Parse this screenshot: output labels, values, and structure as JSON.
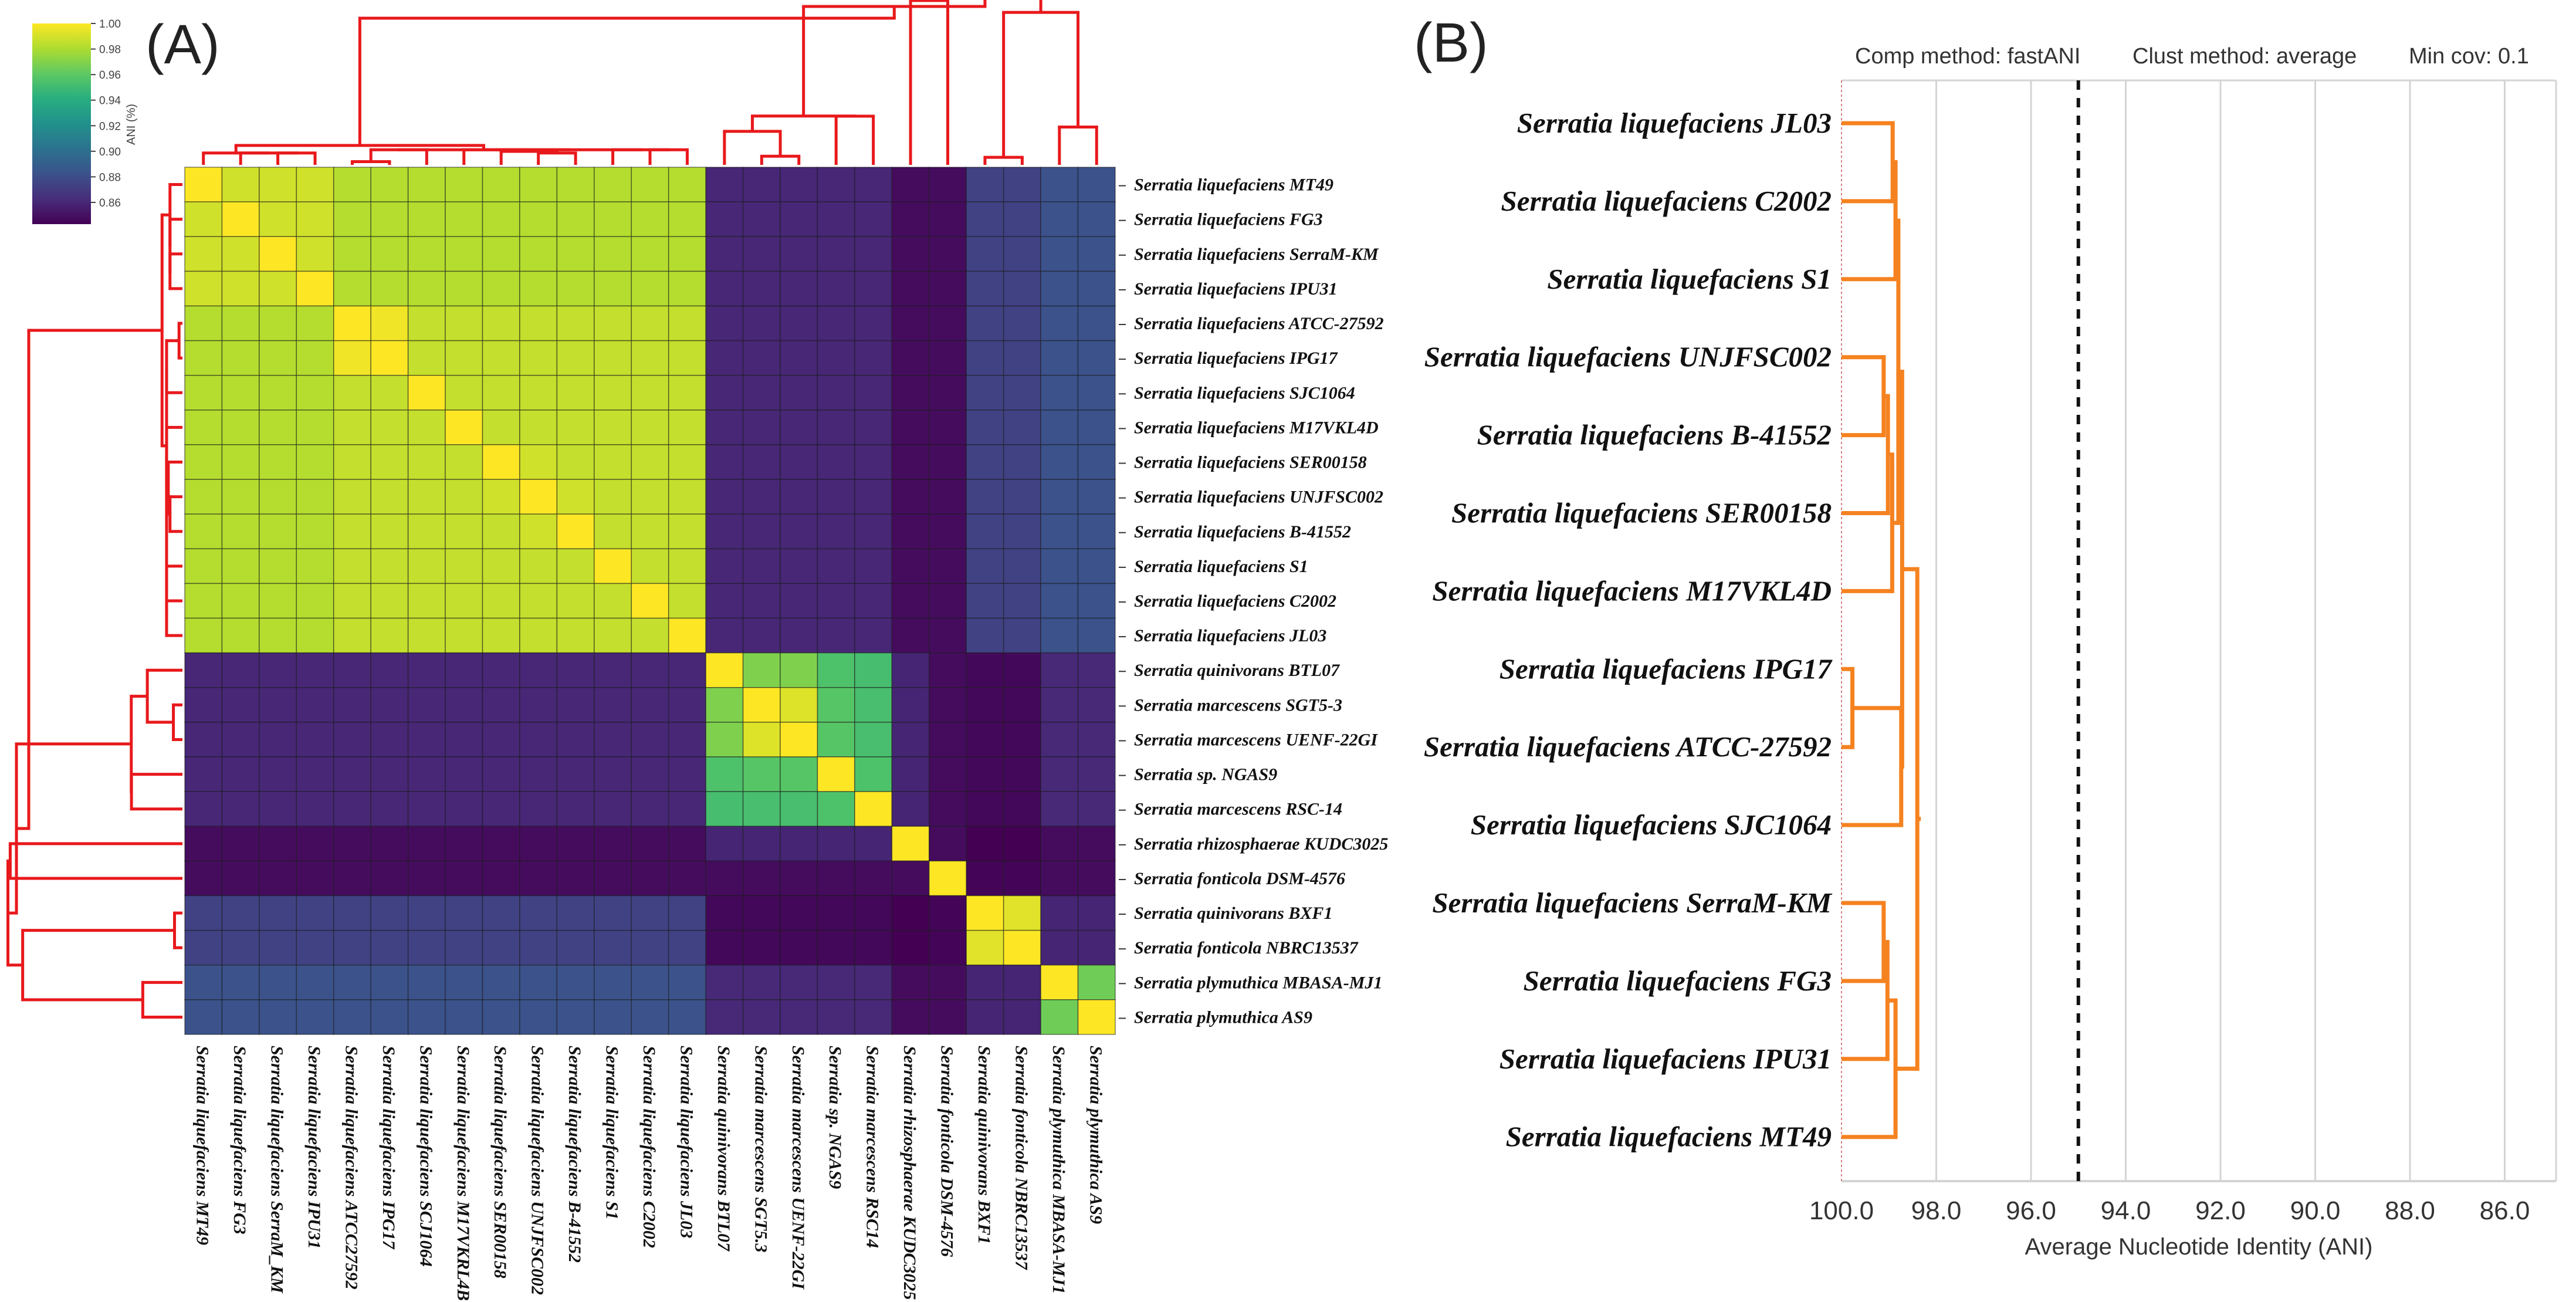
{
  "panels": {
    "a_tag": "(A)",
    "b_tag": "(B)"
  },
  "chart_data": [
    {
      "type": "heatmap",
      "colormap": "viridis",
      "dendrogram_color": "#e8191c",
      "highlight_color": "#cc1f1f",
      "highlighted_label": "Serratia liquefaciens UNJFSC002",
      "colorbar": {
        "label": "ANI (%)",
        "range": [
          0.843,
          1.0
        ],
        "ticks": [
          "1.00",
          "0.98",
          "0.96",
          "0.94",
          "0.92",
          "0.90",
          "0.88",
          "0.86"
        ]
      },
      "row_labels": [
        "Serratia liquefaciens MT49",
        "Serratia liquefaciens FG3",
        "Serratia liquefaciens SerraM-KM",
        "Serratia liquefaciens IPU31",
        "Serratia liquefaciens ATCC-27592",
        "Serratia liquefaciens IPG17",
        "Serratia liquefaciens SJC1064",
        "Serratia liquefaciens M17VKL4D",
        "Serratia liquefaciens SER00158",
        "Serratia liquefaciens UNJFSC002",
        "Serratia liquefaciens B-41552",
        "Serratia liquefaciens S1",
        "Serratia liquefaciens C2002",
        "Serratia liquefaciens JL03",
        "Serratia quinivorans BTL07",
        "Serratia marcescens SGT5-3",
        "Serratia marcescens UENF-22GI",
        "Serratia sp. NGAS9",
        "Serratia marcescens RSC-14",
        "Serratia rhizosphaerae KUDC3025",
        "Serratia fonticola DSM-4576",
        "Serratia quinivorans BXF1",
        "Serratia fonticola NBRC13537",
        "Serratia plymuthica MBASA-MJ1",
        "Serratia plymuthica AS9"
      ],
      "column_labels": [
        "Serratia liquefaciens MT49",
        "Serratia liquefaciens FG3",
        "Serratia liquefaciens SerraM_KM",
        "Serratia liquefaciens IPU31",
        "Serratia liquefaciens ATCC27592",
        "Serratia liquefaciens IPG17",
        "Serratia liquefaciens SCJ1064",
        "Serratia liquefaciens M17VKRL4B",
        "Serratia liquefaciens SER00158",
        "Serratia liquefaciens UNJFSC002",
        "Serratia liquefaciens B-41552",
        "Serratia liquefaciens S1",
        "Serratia liquefaciens C2002",
        "Serratia liquefaciens JL03",
        "Serratia quinivorans BTL07",
        "Serratia marcescens SGT5.3",
        "Serratia marcescens UENF-22GI",
        "Serratia sp. NGAS9",
        "Serratia marcescens RSC14",
        "Serratia rhizosphaerae KUDC3025",
        "Serratia fonticola DSM-4576",
        "Serratia quinivorans BXF1",
        "Serratia fonticola NBRC13537",
        "Serratia plymuthica MBASA-MJ1",
        "Serratia plymuthica AS9"
      ],
      "tree": [
        [
          [
            0,
            [
              1,
              [
                2,
                3
              ]
            ]
          ],
          [
            [
              [
                4,
                5
              ],
              6
            ],
            [
              [
                7,
                [
                  8,
                  [
                    9,
                    10
                  ]
                ]
              ],
              [
                11,
                [
                  12,
                  13
                ]
              ]
            ]
          ]
        ],
        [
          [
            [
              14,
              [
                15,
                16
              ]
            ],
            [
              17,
              18
            ]
          ],
          [
            [
              19,
              20
            ],
            [
              [
                21,
                22
              ],
              [
                23,
                24
              ]
            ]
          ]
        ]
      ],
      "matrix": [
        [
          1,
          0.989,
          0.989,
          0.989,
          0.982,
          0.982,
          0.982,
          0.982,
          0.982,
          0.982,
          0.982,
          0.982,
          0.982,
          0.982,
          0.86,
          0.86,
          0.86,
          0.86,
          0.86,
          0.848,
          0.848,
          0.874,
          0.874,
          0.882,
          0.882
        ],
        [
          0.989,
          1,
          0.989,
          0.989,
          0.982,
          0.982,
          0.982,
          0.982,
          0.982,
          0.982,
          0.982,
          0.982,
          0.982,
          0.982,
          0.86,
          0.86,
          0.86,
          0.86,
          0.86,
          0.848,
          0.848,
          0.874,
          0.874,
          0.882,
          0.882
        ],
        [
          0.989,
          0.989,
          1,
          0.989,
          0.982,
          0.982,
          0.982,
          0.982,
          0.982,
          0.982,
          0.982,
          0.982,
          0.982,
          0.982,
          0.86,
          0.86,
          0.86,
          0.86,
          0.86,
          0.848,
          0.848,
          0.874,
          0.874,
          0.882,
          0.882
        ],
        [
          0.989,
          0.989,
          0.989,
          1,
          0.982,
          0.982,
          0.982,
          0.982,
          0.982,
          0.982,
          0.982,
          0.982,
          0.982,
          0.982,
          0.86,
          0.86,
          0.86,
          0.86,
          0.86,
          0.848,
          0.848,
          0.874,
          0.874,
          0.882,
          0.882
        ],
        [
          0.982,
          0.982,
          0.982,
          0.982,
          1,
          0.997,
          0.986,
          0.986,
          0.986,
          0.986,
          0.986,
          0.986,
          0.986,
          0.986,
          0.86,
          0.86,
          0.86,
          0.86,
          0.86,
          0.848,
          0.848,
          0.874,
          0.874,
          0.882,
          0.882
        ],
        [
          0.982,
          0.982,
          0.982,
          0.982,
          0.997,
          1,
          0.986,
          0.986,
          0.986,
          0.986,
          0.986,
          0.986,
          0.986,
          0.986,
          0.86,
          0.86,
          0.86,
          0.86,
          0.86,
          0.848,
          0.848,
          0.874,
          0.874,
          0.882,
          0.882
        ],
        [
          0.982,
          0.982,
          0.982,
          0.982,
          0.986,
          0.986,
          1,
          0.986,
          0.986,
          0.986,
          0.986,
          0.986,
          0.986,
          0.986,
          0.86,
          0.86,
          0.86,
          0.86,
          0.86,
          0.848,
          0.848,
          0.874,
          0.874,
          0.882,
          0.882
        ],
        [
          0.982,
          0.982,
          0.982,
          0.982,
          0.986,
          0.986,
          0.986,
          1,
          0.986,
          0.986,
          0.986,
          0.986,
          0.986,
          0.986,
          0.86,
          0.86,
          0.86,
          0.86,
          0.86,
          0.848,
          0.848,
          0.874,
          0.874,
          0.882,
          0.882
        ],
        [
          0.982,
          0.982,
          0.982,
          0.982,
          0.986,
          0.986,
          0.986,
          0.986,
          1,
          0.989,
          0.986,
          0.986,
          0.986,
          0.986,
          0.86,
          0.86,
          0.86,
          0.86,
          0.86,
          0.848,
          0.848,
          0.874,
          0.874,
          0.882,
          0.882
        ],
        [
          0.982,
          0.982,
          0.982,
          0.982,
          0.986,
          0.986,
          0.986,
          0.986,
          0.989,
          1,
          0.989,
          0.986,
          0.986,
          0.986,
          0.86,
          0.86,
          0.86,
          0.86,
          0.86,
          0.848,
          0.848,
          0.874,
          0.874,
          0.882,
          0.882
        ],
        [
          0.982,
          0.982,
          0.982,
          0.982,
          0.986,
          0.986,
          0.986,
          0.986,
          0.986,
          0.989,
          1,
          0.986,
          0.986,
          0.986,
          0.86,
          0.86,
          0.86,
          0.86,
          0.86,
          0.848,
          0.848,
          0.874,
          0.874,
          0.882,
          0.882
        ],
        [
          0.982,
          0.982,
          0.982,
          0.982,
          0.986,
          0.986,
          0.986,
          0.986,
          0.986,
          0.986,
          0.986,
          1,
          0.986,
          0.986,
          0.86,
          0.86,
          0.86,
          0.86,
          0.86,
          0.848,
          0.848,
          0.874,
          0.874,
          0.882,
          0.882
        ],
        [
          0.982,
          0.982,
          0.982,
          0.982,
          0.986,
          0.986,
          0.986,
          0.986,
          0.986,
          0.986,
          0.986,
          0.986,
          1,
          0.986,
          0.86,
          0.86,
          0.86,
          0.86,
          0.86,
          0.848,
          0.848,
          0.874,
          0.874,
          0.882,
          0.882
        ],
        [
          0.982,
          0.982,
          0.982,
          0.982,
          0.986,
          0.986,
          0.986,
          0.986,
          0.986,
          0.986,
          0.986,
          0.986,
          0.986,
          1,
          0.86,
          0.86,
          0.86,
          0.86,
          0.86,
          0.848,
          0.848,
          0.874,
          0.874,
          0.882,
          0.882
        ],
        [
          0.86,
          0.86,
          0.86,
          0.86,
          0.86,
          0.86,
          0.86,
          0.86,
          0.86,
          0.86,
          0.86,
          0.86,
          0.86,
          0.86,
          1,
          0.969,
          0.969,
          0.955,
          0.952,
          0.859,
          0.848,
          0.846,
          0.846,
          0.861,
          0.861
        ],
        [
          0.86,
          0.86,
          0.86,
          0.86,
          0.86,
          0.86,
          0.86,
          0.86,
          0.86,
          0.86,
          0.86,
          0.86,
          0.86,
          0.86,
          0.969,
          1,
          0.992,
          0.958,
          0.953,
          0.859,
          0.848,
          0.846,
          0.846,
          0.861,
          0.861
        ],
        [
          0.86,
          0.86,
          0.86,
          0.86,
          0.86,
          0.86,
          0.86,
          0.86,
          0.86,
          0.86,
          0.86,
          0.86,
          0.86,
          0.86,
          0.969,
          0.992,
          1,
          0.958,
          0.953,
          0.859,
          0.848,
          0.846,
          0.846,
          0.861,
          0.861
        ],
        [
          0.86,
          0.86,
          0.86,
          0.86,
          0.86,
          0.86,
          0.86,
          0.86,
          0.86,
          0.86,
          0.86,
          0.86,
          0.86,
          0.86,
          0.955,
          0.958,
          0.958,
          1,
          0.955,
          0.859,
          0.848,
          0.846,
          0.846,
          0.861,
          0.861
        ],
        [
          0.86,
          0.86,
          0.86,
          0.86,
          0.86,
          0.86,
          0.86,
          0.86,
          0.86,
          0.86,
          0.86,
          0.86,
          0.86,
          0.86,
          0.952,
          0.953,
          0.953,
          0.955,
          1,
          0.859,
          0.848,
          0.846,
          0.846,
          0.861,
          0.861
        ],
        [
          0.848,
          0.848,
          0.848,
          0.848,
          0.848,
          0.848,
          0.848,
          0.848,
          0.848,
          0.848,
          0.848,
          0.848,
          0.848,
          0.848,
          0.859,
          0.859,
          0.859,
          0.859,
          0.859,
          1,
          0.848,
          0.843,
          0.843,
          0.848,
          0.848
        ],
        [
          0.848,
          0.848,
          0.848,
          0.848,
          0.848,
          0.848,
          0.848,
          0.848,
          0.848,
          0.848,
          0.848,
          0.848,
          0.848,
          0.848,
          0.848,
          0.848,
          0.848,
          0.848,
          0.848,
          0.848,
          1,
          0.845,
          0.845,
          0.848,
          0.848
        ],
        [
          0.874,
          0.874,
          0.874,
          0.874,
          0.874,
          0.874,
          0.874,
          0.874,
          0.874,
          0.874,
          0.874,
          0.874,
          0.874,
          0.874,
          0.846,
          0.846,
          0.846,
          0.846,
          0.846,
          0.843,
          0.845,
          1,
          0.993,
          0.859,
          0.859
        ],
        [
          0.874,
          0.874,
          0.874,
          0.874,
          0.874,
          0.874,
          0.874,
          0.874,
          0.874,
          0.874,
          0.874,
          0.874,
          0.874,
          0.874,
          0.846,
          0.846,
          0.846,
          0.846,
          0.846,
          0.843,
          0.845,
          0.993,
          1,
          0.859,
          0.859
        ],
        [
          0.882,
          0.882,
          0.882,
          0.882,
          0.882,
          0.882,
          0.882,
          0.882,
          0.882,
          0.882,
          0.882,
          0.882,
          0.882,
          0.882,
          0.861,
          0.861,
          0.861,
          0.861,
          0.861,
          0.848,
          0.848,
          0.859,
          0.859,
          1,
          0.965
        ],
        [
          0.882,
          0.882,
          0.882,
          0.882,
          0.882,
          0.882,
          0.882,
          0.882,
          0.882,
          0.882,
          0.882,
          0.882,
          0.882,
          0.882,
          0.861,
          0.861,
          0.861,
          0.861,
          0.861,
          0.848,
          0.848,
          0.859,
          0.859,
          0.965,
          1
        ]
      ]
    },
    {
      "type": "dendrogram",
      "line_color": "#f58220",
      "header": {
        "comp_method": "Comp method: fastANI",
        "clust_method": "Clust method: average",
        "min_cov": "Min cov: 0.1"
      },
      "xlabel": "Average Nucleotide Identity (ANI)",
      "xlim": [
        100.0,
        84.9
      ],
      "xticks": [
        "100.0",
        "98.0",
        "96.0",
        "94.0",
        "92.0",
        "90.0",
        "88.0",
        "86.0"
      ],
      "threshold": 95.0,
      "grid": true,
      "leaves": [
        "Serratia liquefaciens JL03",
        "Serratia liquefaciens C2002",
        "Serratia liquefaciens S1",
        "Serratia liquefaciens UNJFSC002",
        "Serratia liquefaciens B-41552",
        "Serratia liquefaciens SER00158",
        "Serratia liquefaciens M17VKL4D",
        "Serratia liquefaciens IPG17",
        "Serratia liquefaciens ATCC-27592",
        "Serratia liquefaciens SJC1064",
        "Serratia liquefaciens SerraM-KM",
        "Serratia liquefaciens FG3",
        "Serratia liquefaciens IPU31",
        "Serratia liquefaciens MT49"
      ],
      "tree": {
        "ani": 98.4,
        "children": [
          {
            "ani": 98.72,
            "children": [
              {
                "ani": 98.8,
                "children": [
                  {
                    "ani": 98.86,
                    "children": [
                      {
                        "ani": 98.92,
                        "children": [
                          0,
                          1
                        ]
                      },
                      2
                    ]
                  },
                  {
                    "ani": 98.93,
                    "children": [
                      {
                        "ani": 99.02,
                        "children": [
                          {
                            "ani": 99.11,
                            "children": [
                              3,
                              4
                            ]
                          },
                          5
                        ]
                      },
                      6
                    ]
                  }
                ]
              },
              {
                "ani": 98.74,
                "children": [
                  {
                    "ani": 99.77,
                    "children": [
                      7,
                      8
                    ]
                  },
                  9
                ]
              }
            ]
          },
          {
            "ani": 98.86,
            "children": [
              {
                "ani": 99.03,
                "children": [
                  {
                    "ani": 99.11,
                    "children": [
                      10,
                      11
                    ]
                  },
                  12
                ]
              },
              13
            ]
          }
        ]
      }
    }
  ]
}
